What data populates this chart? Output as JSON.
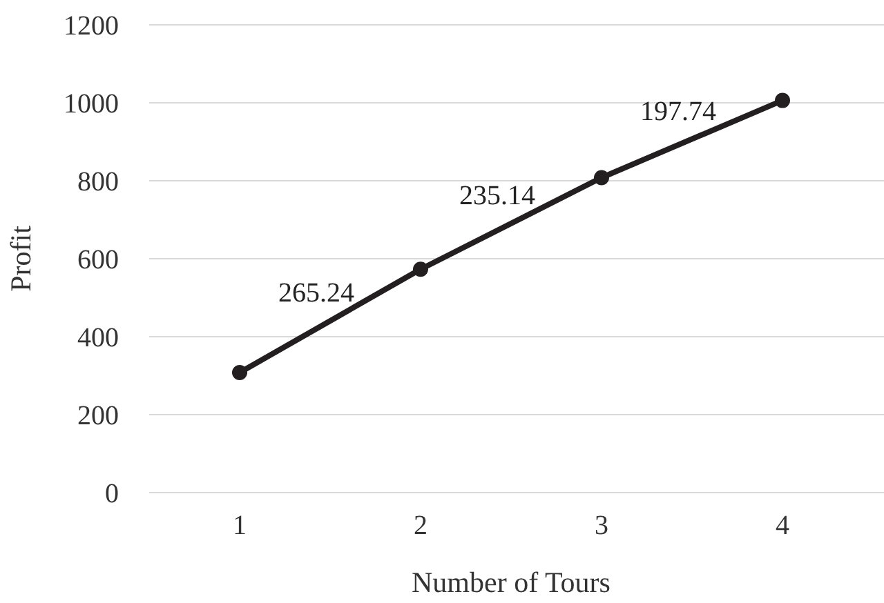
{
  "chart_data": {
    "type": "line",
    "xlabel": "Number of Tours",
    "ylabel": "Profit",
    "categories": [
      "1",
      "2",
      "3",
      "4"
    ],
    "series": [
      {
        "color": "#231f20",
        "values": [
          308,
          573,
          808,
          1006
        ]
      }
    ],
    "ylim": [
      0,
      1200
    ],
    "yticks": [
      0,
      200,
      400,
      600,
      800,
      1000,
      1200
    ],
    "grid": "y",
    "marker": "circle",
    "line_style": "solid",
    "annotations": [
      "265.24",
      "235.14",
      "197.74"
    ]
  }
}
